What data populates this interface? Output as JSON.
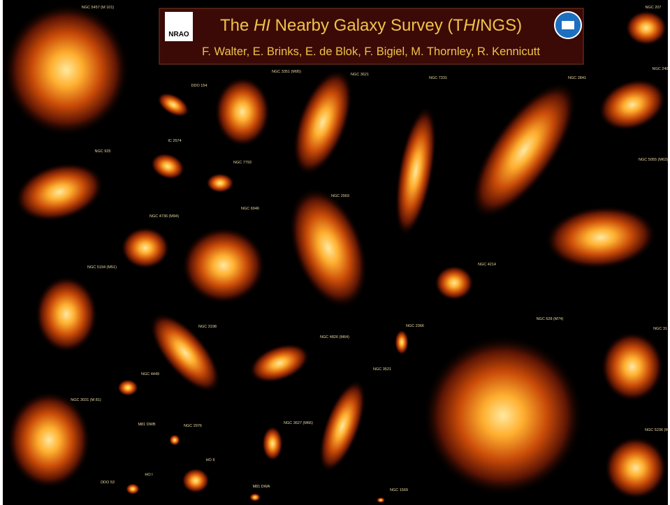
{
  "header": {
    "title_parts": [
      "The ",
      "HI",
      " Nearby Galaxy Survey (T",
      "HI",
      "NGS)"
    ],
    "authors": "F. Walter, E. Brinks, E. de Blok, F. Bigiel, M. Thornley, R. Kennicutt",
    "logo_text": "NRAO"
  },
  "galaxy_labels": [
    "NGC 5457 (M 101)",
    "NGC 207",
    "DDO 154",
    "NGC 3351 (M95)",
    "NGC 3621",
    "NGC 7331",
    "NGC 2841",
    "NGC 240",
    "NGC 925",
    "IC 2574",
    "NGC 7793",
    "NGC 5055 (M63)",
    "NGC 2903",
    "NGC 4736 (M94)",
    "NGC 6946",
    "NGC 5194 (M51)",
    "NGC 4214",
    "NGC 3198",
    "NGC 2366",
    "NGC 4826 (M64)",
    "NGC 628 (M74)",
    "NGC 31",
    "NGC 3521",
    "NGC 4449",
    "NGC 3031 (M 81)",
    "M81 DWB",
    "NGC 2976",
    "NGC 3627 (M66)",
    "NGC 5236 (M",
    "HO II",
    "HO I",
    "DDO 53",
    "M81 DWA",
    "NGC 1569"
  ]
}
